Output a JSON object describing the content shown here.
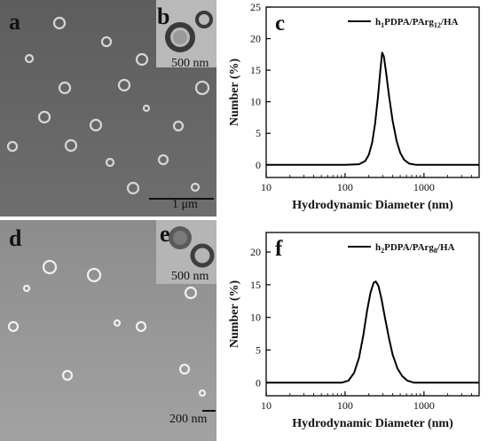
{
  "panels": {
    "a": {
      "letter": "a",
      "scale_label": "1 μm"
    },
    "b": {
      "letter": "b",
      "scale_label": "500 nm"
    },
    "d": {
      "letter": "d",
      "scale_label": "200 nm"
    },
    "e": {
      "letter": "e",
      "scale_label": "500 nm"
    }
  },
  "colors": {
    "line": "#000000",
    "axis": "#000000",
    "sem_bg_top": "#5e5e5e",
    "sem_bg_bottom": "#8a8a8a"
  },
  "chart_data": [
    {
      "panel": "c",
      "type": "line",
      "legend_text": "h₁PDPA/PArg₁₂/HA",
      "legend_parts": [
        "h",
        "1",
        "PDPA/PArg",
        "12",
        "/HA"
      ],
      "xlabel": "Hydrodynamic Diameter (nm)",
      "ylabel": "Number (%)",
      "xscale": "log",
      "xlim": [
        10,
        5000
      ],
      "ylim": [
        -2,
        25
      ],
      "xticks": [
        10,
        100,
        1000
      ],
      "xtick_labels": [
        "10",
        "100",
        "1000"
      ],
      "yticks": [
        0,
        5,
        10,
        15,
        20,
        25
      ],
      "ytick_labels": [
        "0",
        "5",
        "10",
        "15",
        "20",
        "25"
      ],
      "series": [
        {
          "name": "h1PDPA/PArg12/HA",
          "x": [
            10,
            100,
            150,
            180,
            200,
            220,
            240,
            260,
            280,
            295,
            310,
            330,
            360,
            400,
            450,
            500,
            560,
            650,
            800,
            1000,
            5000
          ],
          "y": [
            0,
            0,
            0.1,
            0.6,
            1.6,
            3.5,
            6.5,
            10.5,
            15,
            17.8,
            17.2,
            14.8,
            11,
            7,
            3.8,
            1.9,
            0.8,
            0.2,
            0,
            0,
            0
          ]
        }
      ]
    },
    {
      "panel": "f",
      "type": "line",
      "legend_text": "h₂PDPA/PArg₈/HA",
      "legend_parts": [
        "h",
        "2",
        "PDPA/PArg",
        "8",
        "/HA"
      ],
      "xlabel": "Hydrodynamic Diameter (nm)",
      "ylabel": "Number (%)",
      "xscale": "log",
      "xlim": [
        10,
        5000
      ],
      "ylim": [
        -2,
        23
      ],
      "xticks": [
        10,
        100,
        1000
      ],
      "xtick_labels": [
        "10",
        "100",
        "1000"
      ],
      "yticks": [
        0,
        5,
        10,
        15,
        20
      ],
      "ytick_labels": [
        "0",
        "5",
        "10",
        "15",
        "20"
      ],
      "series": [
        {
          "name": "h2PDPA/PArg8/HA",
          "x": [
            10,
            90,
            110,
            130,
            150,
            170,
            190,
            210,
            230,
            245,
            265,
            290,
            320,
            360,
            400,
            460,
            530,
            620,
            750,
            1000,
            5000
          ],
          "y": [
            0,
            0,
            0.3,
            1.5,
            3.8,
            7.2,
            11,
            13.8,
            15.3,
            15.5,
            14.8,
            12.8,
            10,
            6.8,
            4.3,
            2.2,
            1,
            0.3,
            0,
            0,
            0
          ]
        }
      ]
    }
  ]
}
